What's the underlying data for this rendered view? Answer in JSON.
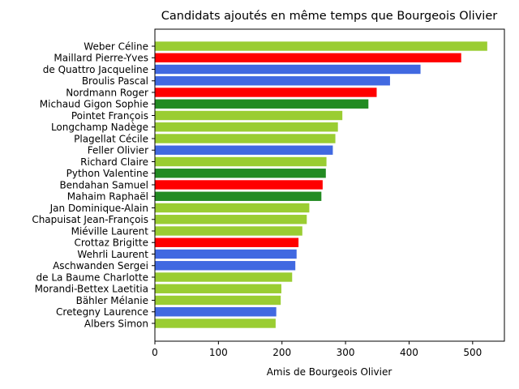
{
  "chart_data": {
    "type": "bar",
    "orientation": "horizontal",
    "title": "Candidats ajoutés en même temps que Bourgeois Olivier",
    "xlabel": "Amis de Bourgeois Olivier",
    "ylabel": "",
    "xlim": [
      0,
      550
    ],
    "xticks": [
      0,
      100,
      200,
      300,
      400,
      500
    ],
    "grid": false,
    "categories": [
      "Weber Céline",
      "Maillard Pierre-Yves",
      "de Quattro Jacqueline",
      "Broulis Pascal",
      "Nordmann Roger",
      "Michaud Gigon Sophie",
      "Pointet François",
      "Longchamp Nadège",
      "Plagellat Cécile",
      "Feller Olivier",
      "Richard Claire",
      "Python Valentine",
      "Bendahan Samuel",
      "Mahaim Raphaël",
      "Jan Dominique-Alain",
      "Chapuisat Jean-François",
      "Miéville Laurent",
      "Crottaz Brigitte",
      "Wehrli Laurent",
      "Aschwanden Sergei",
      "de La Baume Charlotte",
      "Morandi-Bettex Laetitia",
      "Bähler Mélanie",
      "Cretegny Laurence",
      "Albers Simon"
    ],
    "values": [
      523,
      482,
      418,
      370,
      349,
      336,
      295,
      288,
      284,
      280,
      270,
      269,
      264,
      262,
      243,
      239,
      232,
      226,
      223,
      221,
      216,
      199,
      198,
      191,
      190
    ],
    "colors": [
      "#9acd32",
      "#ff0000",
      "#4169e1",
      "#4169e1",
      "#ff0000",
      "#228b22",
      "#9acd32",
      "#9acd32",
      "#9acd32",
      "#4169e1",
      "#9acd32",
      "#228b22",
      "#ff0000",
      "#228b22",
      "#9acd32",
      "#9acd32",
      "#9acd32",
      "#ff0000",
      "#4169e1",
      "#4169e1",
      "#9acd32",
      "#9acd32",
      "#9acd32",
      "#4169e1",
      "#9acd32"
    ]
  }
}
